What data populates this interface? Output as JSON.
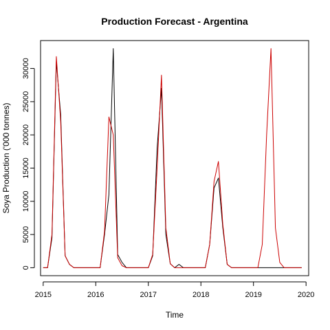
{
  "chart_data": {
    "type": "line",
    "title": "Production Forecast - Argentina",
    "xlabel": "Time",
    "ylabel": "Soya Production ('000 tonnes)",
    "xlim": [
      2014.95,
      2020.05
    ],
    "ylim": [
      -1200,
      34200
    ],
    "x_ticks": [
      2015,
      2016,
      2017,
      2018,
      2019,
      2020
    ],
    "y_ticks": [
      0,
      5000,
      10000,
      15000,
      20000,
      25000,
      30000
    ],
    "grid": false,
    "legend": "none",
    "series": [
      {
        "color": "#000000",
        "x": [
          2015.0,
          2015.083,
          2015.167,
          2015.25,
          2015.333,
          2015.417,
          2015.5,
          2015.583,
          2015.667,
          2015.75,
          2015.833,
          2015.917,
          2016.0,
          2016.083,
          2016.167,
          2016.25,
          2016.333,
          2016.417,
          2016.5,
          2016.583,
          2016.667,
          2016.75,
          2016.833,
          2016.917,
          2017.0,
          2017.083,
          2017.167,
          2017.25,
          2017.333,
          2017.417,
          2017.5,
          2017.583,
          2017.667,
          2017.75,
          2017.833,
          2017.917,
          2018.0,
          2018.083,
          2018.167,
          2018.25,
          2018.333,
          2018.417,
          2018.5,
          2018.583,
          2018.667,
          2018.75,
          2018.833,
          2018.917,
          2019.0,
          2019.083,
          2019.167,
          2019.25,
          2019.333,
          2019.417,
          2019.5,
          2019.583,
          2019.667,
          2019.75,
          2019.833,
          2019.917
        ],
        "y": [
          0,
          0,
          4500,
          31000,
          23000,
          1800,
          500,
          0,
          0,
          0,
          0,
          0,
          0,
          0,
          5000,
          11000,
          33000,
          2000,
          800,
          0,
          0,
          0,
          0,
          0,
          0,
          1800,
          18000,
          27000,
          5000,
          600,
          0,
          500,
          0,
          0,
          0,
          0,
          0,
          0,
          3500,
          12000,
          13500,
          6000,
          500,
          0,
          0,
          0,
          0,
          0,
          0,
          0,
          0,
          0,
          0,
          0,
          0,
          0,
          0,
          0,
          0,
          0
        ]
      },
      {
        "color": "#cc0000",
        "x": [
          2015.0,
          2015.083,
          2015.167,
          2015.25,
          2015.333,
          2015.417,
          2015.5,
          2015.583,
          2015.667,
          2015.75,
          2015.833,
          2015.917,
          2016.0,
          2016.083,
          2016.167,
          2016.25,
          2016.333,
          2016.417,
          2016.5,
          2016.583,
          2016.667,
          2016.75,
          2016.833,
          2016.917,
          2017.0,
          2017.083,
          2017.167,
          2017.25,
          2017.333,
          2017.417,
          2017.5,
          2017.583,
          2017.667,
          2017.75,
          2017.833,
          2017.917,
          2018.0,
          2018.083,
          2018.167,
          2018.25,
          2018.333,
          2018.417,
          2018.5,
          2018.583,
          2018.667,
          2018.75,
          2018.833,
          2018.917,
          2019.0,
          2019.083,
          2019.167,
          2019.25,
          2019.333,
          2019.417,
          2019.5,
          2019.583,
          2019.667,
          2019.75,
          2019.833,
          2019.917
        ],
        "y": [
          0,
          0,
          5000,
          31800,
          22000,
          1800,
          500,
          0,
          0,
          0,
          0,
          0,
          0,
          0,
          5500,
          22700,
          20000,
          1500,
          300,
          0,
          0,
          0,
          0,
          0,
          0,
          2000,
          15000,
          29000,
          6000,
          600,
          0,
          0,
          0,
          0,
          0,
          0,
          0,
          0,
          3500,
          13000,
          16000,
          6500,
          500,
          0,
          0,
          0,
          0,
          0,
          0,
          0,
          3500,
          20000,
          33000,
          6000,
          800,
          0,
          0,
          0,
          0,
          0
        ]
      }
    ]
  }
}
